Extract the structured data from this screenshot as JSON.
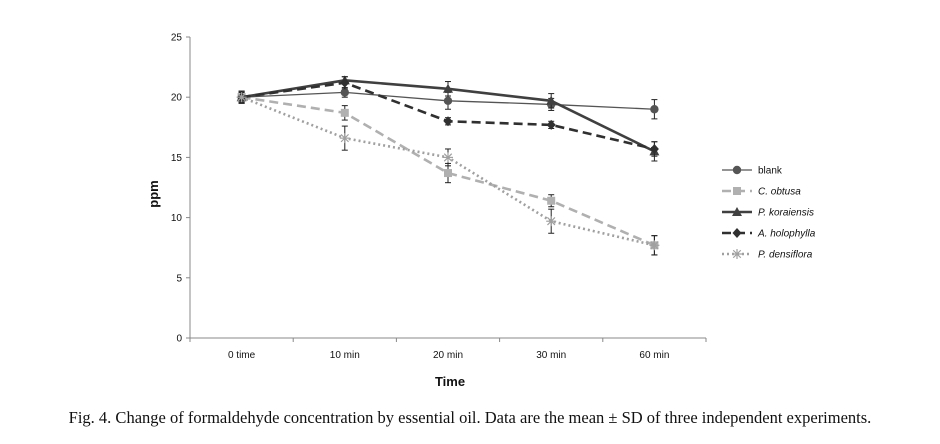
{
  "figure": {
    "caption": "Fig. 4. Change of formaldehyde concentration by essential oil. Data are the mean ± SD of three independent experiments."
  },
  "chart_data": {
    "type": "line",
    "title": "",
    "xlabel": "Time",
    "ylabel": "ppm",
    "categories": [
      "0 time",
      "10 min",
      "20 min",
      "30 min",
      "60 min"
    ],
    "ylim": [
      0,
      25
    ],
    "yticks": [
      0,
      5,
      10,
      15,
      20,
      25
    ],
    "grid": false,
    "legend_position": "right",
    "series": [
      {
        "name": "blank",
        "values": [
          20.0,
          20.4,
          19.7,
          19.4,
          19.0
        ],
        "errors": [
          0.5,
          0.4,
          0.7,
          0.5,
          0.8
        ],
        "color": "#555555",
        "dash": "solid",
        "weight": "thin",
        "marker": "circle"
      },
      {
        "name": "C. obtusa",
        "values": [
          20.0,
          18.7,
          13.7,
          11.4,
          7.7
        ],
        "errors": [
          0.5,
          0.6,
          0.8,
          0.5,
          0.8
        ],
        "color": "#b0b0b0",
        "dash": "dashed",
        "weight": "thick",
        "marker": "square"
      },
      {
        "name": "P. koraiensis",
        "values": [
          20.0,
          21.4,
          20.7,
          19.7,
          15.5
        ],
        "errors": [
          0.4,
          0.3,
          0.6,
          0.6,
          0.8
        ],
        "color": "#404040",
        "dash": "solid",
        "weight": "thick",
        "marker": "triangle"
      },
      {
        "name": "A. holophylla",
        "values": [
          20.0,
          21.2,
          18.0,
          17.7,
          15.7
        ],
        "errors": [
          0.4,
          0.5,
          0.3,
          0.3,
          0.6
        ],
        "color": "#303030",
        "dash": "dashed",
        "weight": "thick",
        "marker": "diamond"
      },
      {
        "name": "P. densiflora",
        "values": [
          20.0,
          16.6,
          15.0,
          9.7,
          7.7
        ],
        "errors": [
          0.5,
          1.0,
          0.7,
          1.0,
          0.8
        ],
        "color": "#a0a0a0",
        "dash": "dotted",
        "weight": "thick",
        "marker": "star"
      }
    ]
  }
}
